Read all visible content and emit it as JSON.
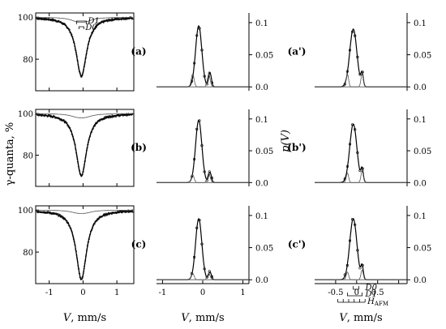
{
  "chart_data": [
    {
      "id": "mossbauer",
      "type": "scatter",
      "rows": [
        {
          "label": "(a)",
          "markers": [
            "D1",
            "D0"
          ]
        },
        {
          "label": "(b)",
          "markers": []
        },
        {
          "label": "(c)",
          "markers": []
        }
      ],
      "xlabel_var": "V",
      "xlabel_unit": ", mm/s",
      "ylabel": "γ-quanta, %",
      "xlim": [
        -1.4,
        1.5
      ],
      "xticks": [
        -1,
        0,
        1
      ],
      "ylim": [
        65,
        102
      ],
      "yticks": [
        100,
        80
      ],
      "series": [
        {
          "name": "",
          "role": "experimental",
          "style": "dots",
          "center": -0.05,
          "depth": [
            28,
            30,
            33
          ],
          "width": 0.38
        },
        {
          "name": "",
          "role": "fit",
          "style": "line",
          "center": -0.05,
          "depth": [
            28,
            30,
            33
          ],
          "width": 0.38
        },
        {
          "name": "",
          "role": "subspectrum",
          "style": "thin-line",
          "center": -0.05,
          "depth": [
            3,
            2.5,
            2
          ],
          "width": 0.5
        }
      ]
    },
    {
      "id": "distribution-left",
      "type": "line",
      "rows": [
        {
          "label": "(a)"
        },
        {
          "label": "(b)"
        },
        {
          "label": "(c)"
        }
      ],
      "xlabel_var": "V",
      "xlabel_unit": ", mm/s",
      "ylabel": "p(V)",
      "xlim": [
        -1.15,
        1.15
      ],
      "xticks": [
        -1,
        0,
        1
      ],
      "ylim": [
        -0.006,
        0.115
      ],
      "yticks": [
        0.0,
        0.05,
        0.1
      ],
      "ytick_labels": [
        "0.0",
        "0.05",
        "0.1"
      ],
      "series": [
        {
          "name": "",
          "role": "total",
          "peaks": [
            {
              "center": -0.1,
              "height": [
                0.095,
                0.098,
                0.095
              ],
              "width": 0.11
            },
            {
              "center": 0.18,
              "height": [
                0.022,
                0.016,
                0.012
              ],
              "width": 0.05
            }
          ]
        },
        {
          "name": "",
          "role": "component",
          "peaks": [
            {
              "center": -0.25,
              "height": [
                0.02,
                0.012,
                0.01
              ],
              "width": 0.05
            }
          ]
        },
        {
          "name": "",
          "role": "component",
          "peaks": [
            {
              "center": 0.15,
              "height": [
                0.02,
                0.015,
                0.01
              ],
              "width": 0.05
            }
          ]
        }
      ]
    },
    {
      "id": "distribution-right",
      "type": "line",
      "rows": [
        {
          "label": "(a')"
        },
        {
          "label": "(b')"
        },
        {
          "label": "(c')",
          "markers": [
            "D0",
            "D1",
            "H"
          ],
          "marker_sub": "AFM"
        }
      ],
      "xlabel_var": "V",
      "xlabel_unit": ", mm/s",
      "ylabel": "p(V)",
      "xlim": [
        -1.0,
        1.2
      ],
      "xticks": [
        -0.5,
        0.0,
        0.5,
        1.0
      ],
      "ytick_labels": [
        "0.0",
        "0.05",
        "0.1"
      ],
      "ylim": [
        -0.006,
        0.115
      ],
      "yticks": [
        0.0,
        0.05,
        0.1
      ],
      "series": [
        {
          "name": "",
          "role": "total",
          "peaks": [
            {
              "center": -0.08,
              "height": [
                0.09,
                0.092,
                0.095
              ],
              "width": 0.12
            },
            {
              "center": 0.13,
              "height": [
                0.02,
                0.02,
                0.02
              ],
              "width": 0.04
            }
          ]
        },
        {
          "name": "",
          "role": "component",
          "peaks": [
            {
              "center": -0.22,
              "height": [
                0.02,
                0.015,
                0.012
              ],
              "width": 0.04
            }
          ]
        },
        {
          "name": "",
          "role": "component",
          "peaks": [
            {
              "center": 0.13,
              "height": [
                0.02,
                0.018,
                0.015
              ],
              "width": 0.04
            }
          ]
        }
      ]
    }
  ]
}
